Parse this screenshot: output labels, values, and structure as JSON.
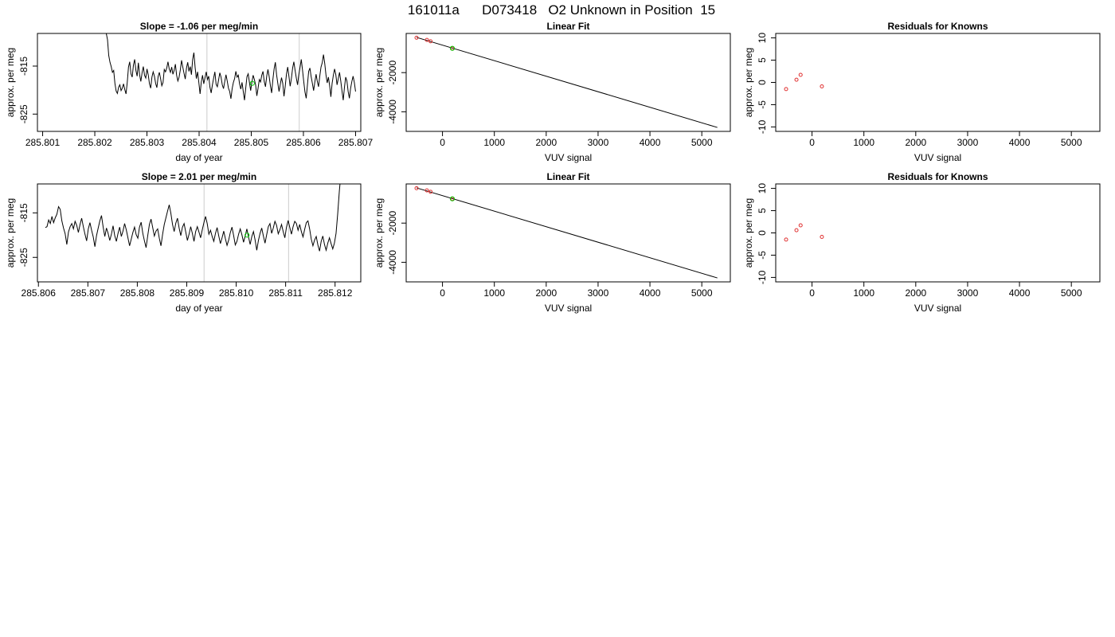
{
  "figure": {
    "title": "161011a      D073418   O2 Unknown in Position  15",
    "colors": {
      "known": "#e03030",
      "unknown": "#00cc00",
      "line": "#000000",
      "vline": "#cccccc"
    }
  },
  "chart_data": [
    {
      "id": "p11",
      "type": "line",
      "title": "Slope =  -1.06  per meg/min",
      "xlabel": "day of year",
      "ylabel": "approx. per meg",
      "xlim": [
        285.8009,
        285.8071
      ],
      "ylim": [
        -828.6,
        -808.2
      ],
      "xticks": [
        285.801,
        285.802,
        285.803,
        285.804,
        285.805,
        285.806,
        285.807
      ],
      "xtick_labels": [
        "285.801",
        "285.802",
        "285.803",
        "285.804",
        "285.805",
        "285.806",
        "285.807"
      ],
      "yticks": [
        -825,
        -815
      ],
      "ytick_labels": [
        "-825",
        "-815"
      ],
      "vlines": [
        285.80415,
        285.80592
      ],
      "series": [
        {
          "x_start": 285.80222,
          "x_end": 285.807,
          "y": [
            -808.2,
            -809.5,
            -812.8,
            -814.2,
            -815.1,
            -816.3,
            -815.9,
            -818.6,
            -820.2,
            -820.7,
            -819.4,
            -818.9,
            -820.1,
            -819.6,
            -818.7,
            -819.9,
            -820.8,
            -818.4,
            -815.2,
            -814.1,
            -816.6,
            -817.3,
            -814.8,
            -813.6,
            -815.9,
            -817.1,
            -814.3,
            -816.8,
            -818.2,
            -816.4,
            -815.1,
            -816.9,
            -817.5,
            -815.6,
            -816.8,
            -818.7,
            -819.6,
            -817.3,
            -816.2,
            -817.1,
            -818.6,
            -819.5,
            -817.2,
            -816.3,
            -817.6,
            -819.1,
            -818.4,
            -815.7,
            -816.2,
            -815.4,
            -814.1,
            -815.6,
            -816.3,
            -815.2,
            -816.7,
            -815.9,
            -814.6,
            -816.9,
            -818.1,
            -817.3,
            -815.8,
            -813.8,
            -815.2,
            -816.5,
            -817.7,
            -815.4,
            -814.2,
            -816.1,
            -815.1,
            -816.8,
            -813.6,
            -812.2,
            -815.3,
            -817.6,
            -816.2,
            -818.4,
            -820.8,
            -818.3,
            -816.9,
            -818.7,
            -817.4,
            -816.2,
            -817.8,
            -817.1,
            -819.4,
            -820.6,
            -818.9,
            -817.5,
            -816.2,
            -818.8,
            -819.3,
            -817.9,
            -816.4,
            -817.3,
            -818.9,
            -819.7,
            -818.2,
            -816.8,
            -818.1,
            -819.6,
            -820.3,
            -821.8,
            -819.7,
            -818.4,
            -817.6,
            -816.1,
            -817.3,
            -816.9,
            -818.7,
            -819.8,
            -818.4,
            -820.3,
            -822.1,
            -819.6,
            -817.2,
            -816.6,
            -818.4,
            -820.1,
            -818.3,
            -816.9,
            -817.8,
            -818.9,
            -821.2,
            -819.6,
            -817.8,
            -818.3,
            -816.9,
            -816.1,
            -818.2,
            -819.3,
            -817.1,
            -815.7,
            -817.2,
            -819.1,
            -820.6,
            -817.8,
            -815.6,
            -814.2,
            -816.8,
            -818.6,
            -820.3,
            -818.8,
            -817.4,
            -818.6,
            -821.3,
            -819.2,
            -816.7,
            -815.2,
            -817.1,
            -819.2,
            -817.6,
            -815.4,
            -814.1,
            -815.9,
            -817.5,
            -818.9,
            -816.8,
            -815.3,
            -813.6,
            -815.8,
            -818.2,
            -820.4,
            -821.7,
            -818.9,
            -816.1,
            -815.4,
            -817.2,
            -818.6,
            -820.1,
            -818.3,
            -816.7,
            -818.2,
            -819.3,
            -817.1,
            -815.2,
            -814.3,
            -812.6,
            -814.4,
            -816.8,
            -818.5,
            -817.3,
            -819.1,
            -821.4,
            -818.6,
            -816.9,
            -815.6,
            -816.8,
            -818.9,
            -817.6,
            -816.3,
            -818.1,
            -820.2,
            -822.1,
            -819.4,
            -817.3,
            -818.1,
            -820.3,
            -821.7,
            -819.6,
            -818.2,
            -817.1,
            -818.4,
            -820.3
          ]
        }
      ],
      "points": [
        {
          "x": 285.80502,
          "y": -818.6,
          "kind": "unknown"
        }
      ]
    },
    {
      "id": "p12",
      "type": "line",
      "title": "Linear Fit",
      "xlabel": "VUV signal",
      "ylabel": "approx. per meg",
      "xlim": [
        -700,
        5550
      ],
      "ylim": [
        -5000,
        0
      ],
      "xticks": [
        0,
        1000,
        2000,
        3000,
        4000,
        5000
      ],
      "xtick_labels": [
        "0",
        "1000",
        "2000",
        "3000",
        "4000",
        "5000"
      ],
      "yticks": [
        -4000,
        -2000
      ],
      "ytick_labels": [
        "-4000",
        "-2000"
      ],
      "fit_line": [
        [
          -500,
          -200
        ],
        [
          5300,
          -4800
        ]
      ],
      "points": [
        {
          "x": -500,
          "y": -220,
          "kind": "known"
        },
        {
          "x": -300,
          "y": -330,
          "kind": "known"
        },
        {
          "x": -230,
          "y": -400,
          "kind": "known"
        },
        {
          "x": 190,
          "y": -760,
          "kind": "known"
        },
        {
          "x": 190,
          "y": -760,
          "kind": "unknown"
        }
      ]
    },
    {
      "id": "p13",
      "type": "scatter",
      "title": "Residuals for Knowns",
      "xlabel": "VUV signal",
      "ylabel": "approx. per meg",
      "xlim": [
        -700,
        5550
      ],
      "ylim": [
        -11,
        11
      ],
      "xticks": [
        0,
        1000,
        2000,
        3000,
        4000,
        5000
      ],
      "xtick_labels": [
        "0",
        "1000",
        "2000",
        "3000",
        "4000",
        "5000"
      ],
      "yticks": [
        -10,
        -5,
        0,
        5,
        10
      ],
      "ytick_labels": [
        "-10",
        "-5",
        "0",
        "5",
        "10"
      ],
      "points": [
        {
          "x": -500,
          "y": -1.5,
          "kind": "known"
        },
        {
          "x": -300,
          "y": 0.6,
          "kind": "known"
        },
        {
          "x": -220,
          "y": 1.7,
          "kind": "known"
        },
        {
          "x": 190,
          "y": -0.9,
          "kind": "known"
        }
      ]
    },
    {
      "id": "p21",
      "type": "line",
      "title": "Slope =  2.01  per meg/min",
      "xlabel": "day of year",
      "ylabel": "approx. per meg",
      "xlim": [
        285.80598,
        285.81252
      ],
      "ylim": [
        -830.5,
        -808.5
      ],
      "xticks": [
        285.806,
        285.807,
        285.808,
        285.809,
        285.81,
        285.811,
        285.812
      ],
      "xtick_labels": [
        "285.806",
        "285.807",
        "285.808",
        "285.809",
        "285.810",
        "285.811",
        "285.812"
      ],
      "yticks": [
        -825,
        -815
      ],
      "ytick_labels": [
        "-825",
        "-815"
      ],
      "vlines": [
        285.80935,
        285.81106
      ],
      "series": [
        {
          "x_start": 285.80614,
          "x_end": 285.81212,
          "y": [
            -818.3,
            -818.1,
            -816.6,
            -817.4,
            -815.8,
            -817.2,
            -816.1,
            -815.3,
            -813.6,
            -814.2,
            -816.8,
            -818.4,
            -819.7,
            -822.1,
            -819.3,
            -818.1,
            -817.4,
            -818.6,
            -816.9,
            -817.8,
            -819.4,
            -817.6,
            -816.2,
            -818.1,
            -819.8,
            -821.3,
            -818.6,
            -817.2,
            -818.9,
            -820.4,
            -822.6,
            -820.1,
            -818.4,
            -816.8,
            -815.6,
            -818.2,
            -820.3,
            -818.4,
            -819.6,
            -821.2,
            -819.8,
            -817.9,
            -820.1,
            -821.4,
            -819.6,
            -818.2,
            -820.3,
            -819.1,
            -817.4,
            -818.8,
            -820.6,
            -822.4,
            -820.9,
            -819.4,
            -818.2,
            -819.9,
            -820.7,
            -818.2,
            -817.1,
            -819.6,
            -821.3,
            -822.8,
            -820.1,
            -817.6,
            -816.4,
            -818.3,
            -820.2,
            -819.1,
            -818.6,
            -820.7,
            -822.4,
            -819.8,
            -817.6,
            -816.1,
            -814.6,
            -813.2,
            -815.1,
            -817.6,
            -819.2,
            -817.3,
            -816.2,
            -818.4,
            -820.1,
            -818.2,
            -817.4,
            -819.3,
            -821.2,
            -819.8,
            -818.1,
            -819.6,
            -821.4,
            -819.2,
            -818.1,
            -819.3,
            -820.6,
            -818.8,
            -817.2,
            -815.8,
            -817.4,
            -819.8,
            -818.9,
            -820.3,
            -821.4,
            -819.6,
            -818.3,
            -820.2,
            -821.9,
            -820.6,
            -819.1,
            -820.8,
            -822.3,
            -821.1,
            -819.4,
            -818.2,
            -820.1,
            -822.2,
            -821.4,
            -819.8,
            -818.6,
            -819.9,
            -821.6,
            -820.2,
            -818.6,
            -820.4,
            -822.1,
            -820.3,
            -819.2,
            -821.1,
            -823.4,
            -821.2,
            -819.6,
            -818.4,
            -820.2,
            -821.8,
            -819.9,
            -818.1,
            -817.4,
            -819.6,
            -818.4,
            -816.9,
            -817.8,
            -819.7,
            -818.8,
            -817.6,
            -819.2,
            -820.6,
            -818.2,
            -816.7,
            -818.3,
            -819.8,
            -818.1,
            -816.9,
            -817.4,
            -818.9,
            -817.6,
            -819.2,
            -820.4,
            -818.7,
            -817.2,
            -816.8,
            -818.6,
            -820.9,
            -822.4,
            -821.1,
            -820.3,
            -822.2,
            -823.6,
            -821.4,
            -820.2,
            -822.1,
            -823.4,
            -821.8,
            -820.6,
            -821.9,
            -823.1,
            -821.8,
            -819.6,
            -815.2,
            -810.1,
            -806.0
          ]
        }
      ],
      "points": [
        {
          "x": 285.81022,
          "y": -820.0,
          "kind": "unknown"
        }
      ]
    },
    {
      "id": "p22",
      "type": "line",
      "title": "Linear Fit",
      "xlabel": "VUV signal",
      "ylabel": "approx. per meg",
      "xlim": [
        -700,
        5550
      ],
      "ylim": [
        -5000,
        0
      ],
      "xticks": [
        0,
        1000,
        2000,
        3000,
        4000,
        5000
      ],
      "xtick_labels": [
        "0",
        "1000",
        "2000",
        "3000",
        "4000",
        "5000"
      ],
      "yticks": [
        -4000,
        -2000
      ],
      "ytick_labels": [
        "-4000",
        "-2000"
      ],
      "fit_line": [
        [
          -500,
          -200
        ],
        [
          5300,
          -4800
        ]
      ],
      "points": [
        {
          "x": -500,
          "y": -220,
          "kind": "known"
        },
        {
          "x": -300,
          "y": -330,
          "kind": "known"
        },
        {
          "x": -230,
          "y": -400,
          "kind": "known"
        },
        {
          "x": 190,
          "y": -760,
          "kind": "known"
        },
        {
          "x": 190,
          "y": -760,
          "kind": "unknown"
        }
      ]
    },
    {
      "id": "p23",
      "type": "scatter",
      "title": "Residuals for Knowns",
      "xlabel": "VUV signal",
      "ylabel": "approx. per meg",
      "xlim": [
        -700,
        5550
      ],
      "ylim": [
        -11,
        11
      ],
      "xticks": [
        0,
        1000,
        2000,
        3000,
        4000,
        5000
      ],
      "xtick_labels": [
        "0",
        "1000",
        "2000",
        "3000",
        "4000",
        "5000"
      ],
      "yticks": [
        -10,
        -5,
        0,
        5,
        10
      ],
      "ytick_labels": [
        "-10",
        "-5",
        "0",
        "5",
        "10"
      ],
      "points": [
        {
          "x": -500,
          "y": -1.5,
          "kind": "known"
        },
        {
          "x": -300,
          "y": 0.6,
          "kind": "known"
        },
        {
          "x": -220,
          "y": 1.7,
          "kind": "known"
        },
        {
          "x": 190,
          "y": -0.9,
          "kind": "known"
        }
      ]
    }
  ]
}
